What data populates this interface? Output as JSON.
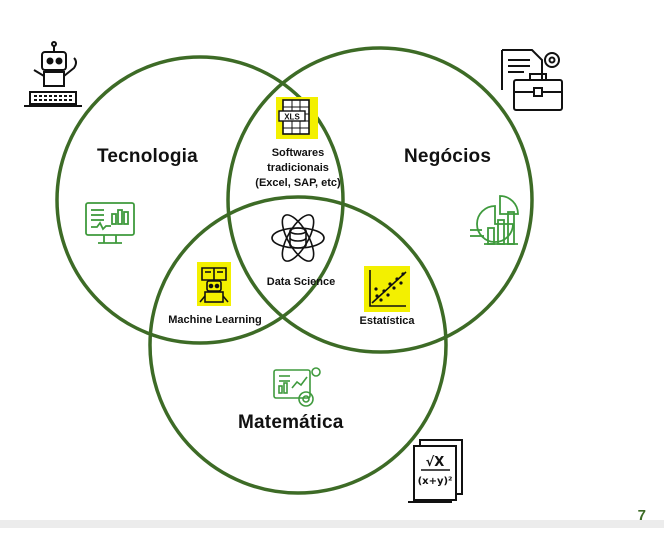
{
  "diagram": {
    "type": "venn",
    "circles": [
      {
        "label": "Tecnologia"
      },
      {
        "label": "Negócios"
      },
      {
        "label": "Matemática"
      }
    ],
    "intersections": {
      "tecnologia_negocios": [
        "Softwares",
        "tradicionais",
        "(Excel, SAP, etc)"
      ],
      "center": "Data Science",
      "tecnologia_matematica": "Machine Learning",
      "negocios_matematica": "Estatística"
    },
    "icon_text": {
      "spreadsheet": "XLS",
      "formula_root": "√X",
      "formula_expr": "(x+y)²"
    }
  },
  "page_number": "7",
  "colors": {
    "circle_stroke": "#3d6b26",
    "icon_green": "#3f9a3d",
    "highlight": "#f3f000",
    "text": "#111111"
  },
  "icons": [
    "robot-icon",
    "briefcase-document-icon",
    "monitor-chart-icon",
    "pie-bar-chart-icon",
    "spreadsheet-xls-icon",
    "atom-database-icon",
    "robot-book-icon",
    "scatter-plot-icon",
    "analytics-dashboard-icon",
    "formula-document-icon"
  ]
}
